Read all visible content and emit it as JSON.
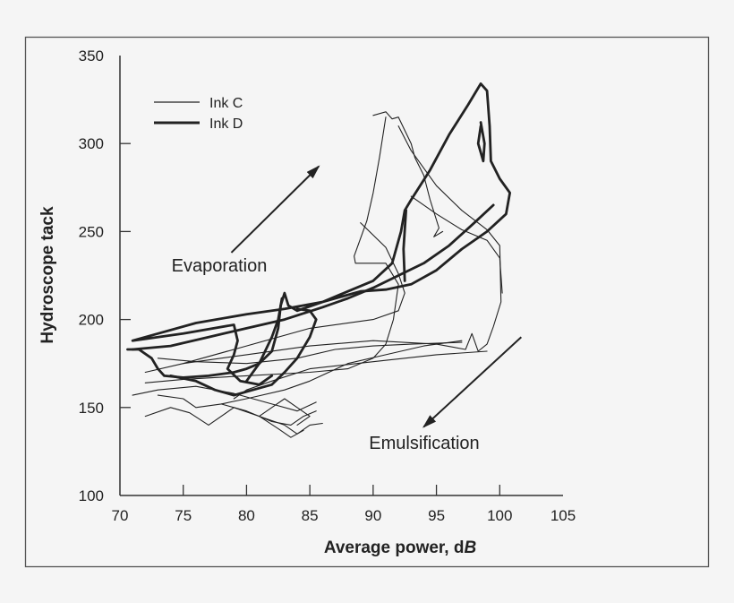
{
  "chart_data": {
    "type": "line",
    "xlabel": "Average power, dB",
    "xlabel_parts": {
      "main": "Average power, d",
      "italic": "B"
    },
    "ylabel": "Hydroscope tack",
    "xlim": [
      70,
      105
    ],
    "ylim": [
      100,
      350
    ],
    "xticks": [
      "70",
      "75",
      "80",
      "85",
      "90",
      "95",
      "100",
      "105"
    ],
    "yticks": [
      "100",
      "150",
      "200",
      "250",
      "300",
      "350"
    ],
    "grid": false,
    "legend_position": "top-left",
    "annotations": [
      {
        "text": "Evaporation",
        "arrow_from": [
          78.8,
          238
        ],
        "arrow_to": [
          85.7,
          287
        ]
      },
      {
        "text": "Emulsification",
        "arrow_from": [
          101.7,
          190
        ],
        "arrow_to": [
          94,
          139
        ]
      }
    ],
    "series": [
      {
        "name": "Ink C",
        "style": "thin",
        "color": "#222222",
        "traces": [
          [
            [
              90,
              316
            ],
            [
              91,
              318
            ],
            [
              91.5,
              314
            ],
            [
              92,
              315
            ],
            [
              92.6,
              306
            ],
            [
              93,
              300
            ],
            [
              93.3,
              292
            ],
            [
              94,
              282
            ],
            [
              94.5,
              268
            ],
            [
              95.2,
              252
            ],
            [
              94.8,
              247
            ],
            [
              95.5,
              250
            ]
          ],
          [
            [
              91,
              315
            ],
            [
              90.5,
              292
            ],
            [
              90,
              272
            ],
            [
              89.5,
              256
            ],
            [
              88.5,
              236
            ],
            [
              88.6,
              232
            ],
            [
              91,
              232
            ],
            [
              92,
              220
            ],
            [
              91.6,
              200
            ],
            [
              91,
              186
            ],
            [
              90,
              178
            ],
            [
              88,
              172
            ],
            [
              85,
              170
            ],
            [
              80,
              168
            ],
            [
              75,
              166
            ],
            [
              72,
              164
            ]
          ],
          [
            [
              89,
              255
            ],
            [
              91,
              241
            ],
            [
              92,
              226
            ],
            [
              92.5,
              215
            ],
            [
              92,
              205
            ],
            [
              90,
              200
            ],
            [
              85,
              195
            ],
            [
              80,
              185
            ],
            [
              75,
              175
            ],
            [
              72,
              170
            ]
          ],
          [
            [
              92,
              310
            ],
            [
              93,
              296
            ],
            [
              95,
              276
            ],
            [
              97,
              262
            ],
            [
              99,
              251
            ],
            [
              100,
              242
            ],
            [
              100.1,
              210
            ],
            [
              99.5,
              196
            ],
            [
              99,
              186
            ],
            [
              98.3,
              182
            ],
            [
              97.8,
              192
            ],
            [
              97.3,
              183
            ],
            [
              95,
              186
            ],
            [
              90,
              188
            ],
            [
              85,
              185
            ],
            [
              80,
              180
            ],
            [
              75,
              175
            ]
          ],
          [
            [
              93,
              270
            ],
            [
              95,
              260
            ],
            [
              97,
              251
            ],
            [
              99,
              245
            ],
            [
              100,
              235
            ],
            [
              100.2,
              215
            ]
          ],
          [
            [
              73,
              157
            ],
            [
              75,
              155
            ],
            [
              76,
              150
            ],
            [
              78,
              152
            ],
            [
              80,
              155
            ],
            [
              83,
              160
            ],
            [
              85,
              165
            ],
            [
              88,
              175
            ],
            [
              91,
              180
            ],
            [
              94,
              185
            ],
            [
              97,
              188
            ]
          ],
          [
            [
              72,
              145
            ],
            [
              74,
              150
            ],
            [
              75.5,
              147
            ],
            [
              77,
              140
            ],
            [
              79,
              150
            ],
            [
              81,
              145
            ],
            [
              83,
              140
            ],
            [
              84,
              135
            ],
            [
              85,
              140
            ],
            [
              86,
              141
            ]
          ],
          [
            [
              71,
              157
            ],
            [
              73,
              160
            ],
            [
              76,
              162
            ],
            [
              79,
              158
            ],
            [
              82,
              152
            ],
            [
              84,
              148
            ],
            [
              85.5,
              153
            ]
          ],
          [
            [
              73,
              178
            ],
            [
              76,
              176
            ],
            [
              80,
              175
            ],
            [
              84,
              178
            ],
            [
              87,
              183
            ],
            [
              90,
              185
            ],
            [
              93,
              186
            ],
            [
              97,
              187
            ]
          ],
          [
            [
              79,
              155
            ],
            [
              80,
              160
            ],
            [
              82,
              165
            ],
            [
              85,
              172
            ],
            [
              90,
              176
            ],
            [
              95,
              180
            ],
            [
              99,
              182
            ]
          ],
          [
            [
              84,
              140
            ],
            [
              85,
              145
            ],
            [
              84,
              150
            ],
            [
              83,
              155
            ],
            [
              82,
              150
            ],
            [
              81,
              145
            ],
            [
              82.5,
              138
            ],
            [
              83.5,
              133
            ],
            [
              84.5,
              137
            ]
          ],
          [
            [
              78,
              152
            ],
            [
              80,
              148
            ],
            [
              82,
              142
            ],
            [
              83.5,
              140
            ],
            [
              84.5,
              145
            ],
            [
              85.5,
              148
            ]
          ]
        ]
      },
      {
        "name": "Ink D",
        "style": "thick",
        "color": "#222222",
        "traces": [
          [
            [
              70.6,
              183
            ],
            [
              71.5,
              183
            ],
            [
              72.5,
              178
            ],
            [
              73,
              172
            ],
            [
              73.5,
              168
            ],
            [
              75,
              167
            ],
            [
              77,
              168
            ],
            [
              79,
              170
            ],
            [
              80,
              172
            ],
            [
              81,
              175
            ],
            [
              82,
              182
            ],
            [
              82.5,
              195
            ],
            [
              82.7,
              208
            ],
            [
              83,
              215
            ],
            [
              83.3,
              208
            ],
            [
              84,
              205
            ],
            [
              86,
              210
            ],
            [
              88,
              216
            ],
            [
              90,
              222
            ],
            [
              91.5,
              232
            ],
            [
              92.2,
              250
            ],
            [
              92.5,
              262
            ],
            [
              93,
              268
            ],
            [
              94.5,
              285
            ],
            [
              96,
              305
            ],
            [
              97.5,
              322
            ],
            [
              98.5,
              334
            ],
            [
              99,
              330
            ],
            [
              99.2,
              310
            ],
            [
              99.3,
              290
            ],
            [
              100,
              280
            ],
            [
              100.8,
              272
            ],
            [
              100.5,
              260
            ],
            [
              99,
              250
            ],
            [
              97,
              240
            ],
            [
              95,
              228
            ],
            [
              93,
              220
            ],
            [
              91,
              217
            ],
            [
              89,
              216
            ],
            [
              86,
              210
            ],
            [
              83,
              206
            ],
            [
              80,
              203
            ],
            [
              76,
              198
            ],
            [
              73,
              192
            ],
            [
              71,
              188
            ],
            [
              72,
              189
            ],
            [
              75,
              192
            ],
            [
              79,
              197
            ],
            [
              79.3,
              188
            ],
            [
              79,
              180
            ],
            [
              78.5,
              172
            ],
            [
              79.5,
              165
            ],
            [
              81,
              163
            ],
            [
              82,
              168
            ]
          ],
          [
            [
              71,
              183
            ],
            [
              74,
              185
            ],
            [
              77,
              190
            ],
            [
              80,
              195
            ],
            [
              83,
              200
            ],
            [
              86,
              207
            ],
            [
              88,
              212
            ],
            [
              90,
              218
            ],
            [
              92,
              225
            ],
            [
              94,
              232
            ],
            [
              96,
              242
            ],
            [
              98,
              255
            ],
            [
              99.5,
              265
            ]
          ],
          [
            [
              74,
              168
            ],
            [
              76,
              165
            ],
            [
              77.5,
              160
            ],
            [
              79,
              157
            ],
            [
              80.5,
              160
            ],
            [
              82,
              163
            ],
            [
              83,
              170
            ],
            [
              84,
              178
            ],
            [
              85,
              190
            ],
            [
              85.5,
              200
            ],
            [
              85,
              205
            ],
            [
              84,
              206
            ]
          ],
          [
            [
              98.5,
              310
            ],
            [
              98.3,
              300
            ],
            [
              98.7,
              290
            ],
            [
              98.8,
              300
            ],
            [
              98.5,
              312
            ]
          ],
          [
            [
              80,
              165
            ],
            [
              81,
              175
            ],
            [
              82,
              190
            ],
            [
              82.5,
              200
            ],
            [
              82.8,
              212
            ]
          ],
          [
            [
              92.5,
              222
            ],
            [
              92.4,
              240
            ],
            [
              92.6,
              262
            ]
          ]
        ]
      }
    ]
  }
}
